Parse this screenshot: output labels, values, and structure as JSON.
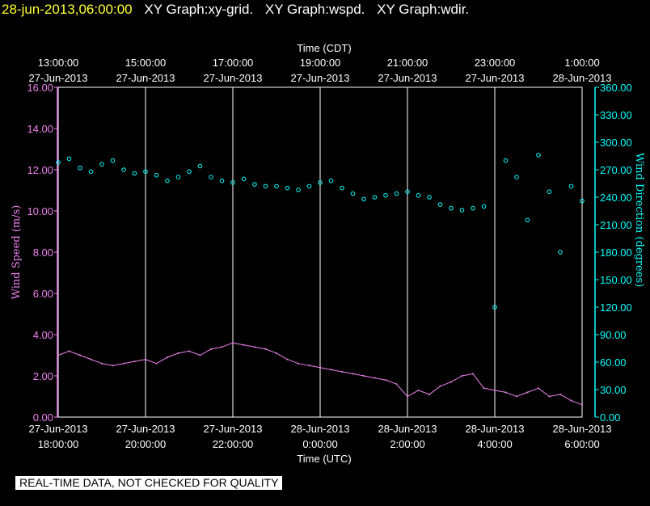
{
  "header": {
    "date_label": "28-jun-2013,06:00:00",
    "graphs": [
      "XY Graph:xy-grid.",
      "XY Graph:wspd.",
      "XY Graph:wdir."
    ]
  },
  "disclaimer": "REAL-TIME DATA, NOT CHECKED FOR QUALITY",
  "chart_data": {
    "type": "line",
    "top_axis_title": "Time (CDT)",
    "bottom_axis_title": "Time (UTC)",
    "ylabel_left": "Wind Speed (m/s)",
    "ylabel_right": "Wind Direction (degrees)",
    "ylim_left": [
      0,
      16
    ],
    "ylim_right": [
      0,
      360
    ],
    "xlim_hours_utc": [
      0,
      12
    ],
    "top_ticks": [
      {
        "t": "13:00:00",
        "d": "27-Jun-2013"
      },
      {
        "t": "15:00:00",
        "d": "27-Jun-2013"
      },
      {
        "t": "17:00:00",
        "d": "27-Jun-2013"
      },
      {
        "t": "19:00:00",
        "d": "27-Jun-2013"
      },
      {
        "t": "21:00:00",
        "d": "27-Jun-2013"
      },
      {
        "t": "23:00:00",
        "d": "27-Jun-2013"
      },
      {
        "t": "1:00:00",
        "d": "28-Jun-2013"
      }
    ],
    "bottom_ticks": [
      {
        "d": "27-Jun-2013",
        "t": "18:00:00"
      },
      {
        "d": "27-Jun-2013",
        "t": "20:00:00"
      },
      {
        "d": "27-Jun-2013",
        "t": "22:00:00"
      },
      {
        "d": "28-Jun-2013",
        "t": "0:00:00"
      },
      {
        "d": "28-Jun-2013",
        "t": "2:00:00"
      },
      {
        "d": "28-Jun-2013",
        "t": "4:00:00"
      },
      {
        "d": "28-Jun-2013",
        "t": "6:00:00"
      }
    ],
    "left_ticks": [
      "0.00",
      "2.00",
      "4.00",
      "6.00",
      "8.00",
      "10.00",
      "12.00",
      "14.00",
      "16.00"
    ],
    "right_ticks": [
      "0.00",
      "30.00",
      "60.00",
      "90.00",
      "120.00",
      "150.00",
      "180.00",
      "210.00",
      "240.00",
      "270.00",
      "300.00",
      "330.00",
      "360.00"
    ],
    "grid": "vertical",
    "series": [
      {
        "name": "wspd",
        "color": "#ee82ee",
        "x": [
          0,
          0.25,
          0.5,
          0.75,
          1,
          1.25,
          1.5,
          1.75,
          2,
          2.25,
          2.5,
          2.75,
          3,
          3.25,
          3.5,
          3.75,
          4,
          4.25,
          4.5,
          4.75,
          5,
          5.25,
          5.5,
          5.75,
          6,
          6.25,
          6.5,
          6.75,
          7,
          7.25,
          7.5,
          7.75,
          8,
          8.25,
          8.5,
          8.75,
          9,
          9.25,
          9.5,
          9.75,
          10,
          10.25,
          10.5,
          10.75,
          11,
          11.25,
          11.5,
          11.75,
          12
        ],
        "y": [
          3.0,
          3.2,
          3.0,
          2.8,
          2.6,
          2.5,
          2.6,
          2.7,
          2.8,
          2.6,
          2.9,
          3.1,
          3.2,
          3.0,
          3.3,
          3.4,
          3.6,
          3.5,
          3.4,
          3.3,
          3.1,
          2.8,
          2.6,
          2.5,
          2.4,
          2.3,
          2.2,
          2.1,
          2.0,
          1.9,
          1.8,
          1.6,
          1.0,
          1.3,
          1.1,
          1.5,
          1.7,
          2.0,
          2.1,
          1.4,
          1.3,
          1.2,
          1.0,
          1.2,
          1.4,
          1.0,
          1.1,
          0.8,
          0.6
        ]
      },
      {
        "name": "wdir",
        "color": "#00ffff",
        "x": [
          0,
          0.25,
          0.5,
          0.75,
          1,
          1.25,
          1.5,
          1.75,
          2,
          2.25,
          2.5,
          2.75,
          3,
          3.25,
          3.5,
          3.75,
          4,
          4.25,
          4.5,
          4.75,
          5,
          5.25,
          5.5,
          5.75,
          6,
          6.25,
          6.5,
          6.75,
          7,
          7.25,
          7.5,
          7.75,
          8,
          8.25,
          8.5,
          8.75,
          9,
          9.25,
          9.5,
          9.75,
          10,
          10.25,
          10.5,
          10.75,
          11,
          11.25,
          11.5,
          11.75,
          12
        ],
        "y": [
          278,
          282,
          272,
          268,
          276,
          280,
          270,
          266,
          268,
          264,
          258,
          262,
          268,
          274,
          262,
          258,
          256,
          260,
          254,
          252,
          252,
          250,
          248,
          252,
          256,
          258,
          250,
          244,
          238,
          240,
          242,
          244,
          246,
          242,
          240,
          232,
          228,
          226,
          228,
          230,
          120,
          280,
          262,
          215,
          286,
          246,
          180,
          252,
          236
        ]
      }
    ]
  }
}
